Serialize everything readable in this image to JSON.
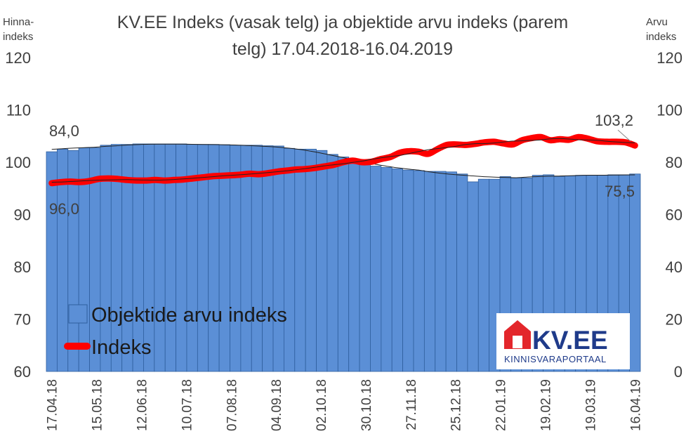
{
  "chart_data": {
    "type": "bar",
    "title": "KV.EE Indeks (vasak telg) ja objektide arvu indeks (parem telg) 17.04.2018-16.04.2019",
    "title_lines": [
      "KV.EE Indeks (vasak telg) ja objektide arvu indeks (parem",
      "telg) 17.04.2018-16.04.2019"
    ],
    "left_axis_title": [
      "Hinna-",
      "indeks"
    ],
    "right_axis_title": [
      "Arvu",
      "indeks"
    ],
    "ylim_left": [
      60,
      120
    ],
    "ylim_right": [
      0,
      120
    ],
    "yticks_left": [
      "120",
      "110",
      "100",
      "90",
      "80",
      "70",
      "60"
    ],
    "yticks_right": [
      "120",
      "100",
      "80",
      "60",
      "40",
      "20",
      "0"
    ],
    "x_tick_labels": [
      "17.04.18",
      "15.05.18",
      "12.06.18",
      "10.07.18",
      "07.08.18",
      "04.09.18",
      "02.10.18",
      "30.10.18",
      "27.11.18",
      "25.12.18",
      "22.01.19",
      "19.02.19",
      "19.03.19",
      "16.04.19"
    ],
    "grid": false,
    "legend_position": "bottom-left",
    "series": [
      {
        "name": "Objektide arvu indeks",
        "kind": "bar",
        "axis": "right",
        "color": "#5b8fd6",
        "values": [
          84.0,
          85.0,
          84.5,
          85.5,
          85.5,
          86.5,
          86.8,
          86.8,
          87.0,
          87.0,
          87.0,
          87.0,
          87.0,
          86.8,
          86.8,
          86.8,
          86.7,
          86.5,
          86.5,
          86.5,
          86.3,
          86.2,
          85.3,
          85.0,
          85.0,
          84.5,
          83.0,
          82.0,
          80.5,
          79.5,
          78.5,
          78.0,
          77.5,
          77.0,
          76.8,
          76.5,
          76.5,
          76.3,
          75.5,
          72.5,
          73.5,
          73.5,
          74.5,
          74.0,
          74.0,
          75.0,
          75.2,
          74.5,
          74.8,
          75.0,
          75.0,
          75.0,
          75.2,
          75.2,
          75.5
        ]
      },
      {
        "name": "Indeks",
        "kind": "line",
        "axis": "left",
        "color": "#ff0000",
        "values": [
          96.0,
          96.2,
          96.3,
          96.2,
          96.4,
          96.8,
          96.9,
          96.8,
          96.6,
          96.5,
          96.5,
          96.6,
          96.5,
          96.6,
          96.7,
          96.9,
          97.1,
          97.3,
          97.4,
          97.5,
          97.6,
          97.8,
          97.7,
          97.9,
          98.2,
          98.4,
          98.6,
          98.7,
          98.9,
          99.2,
          99.5,
          100.0,
          100.3,
          100.0,
          100.1,
          100.6,
          101.0,
          101.8,
          102.1,
          102.0,
          101.6,
          102.5,
          103.3,
          103.4,
          103.3,
          103.5,
          103.8,
          103.9,
          103.6,
          103.4,
          104.2,
          104.6,
          104.8,
          104.2,
          104.4,
          104.3,
          104.8,
          104.5,
          104.0,
          103.9,
          103.9,
          103.8,
          103.2
        ]
      }
    ],
    "annotations": [
      {
        "text": "84,0",
        "series": "Objektide arvu indeks",
        "point": "first"
      },
      {
        "text": "96,0",
        "series": "Indeks",
        "point": "first"
      },
      {
        "text": "103,2",
        "series": "Indeks",
        "point": "last"
      },
      {
        "text": "75,5",
        "series": "Objektide arvu indeks",
        "point": "last"
      }
    ]
  },
  "logo": {
    "brand": "KV.EE",
    "tagline": "KINNISVARAPORTAAL"
  },
  "colors": {
    "text": "#404040",
    "bar": "#5b8fd6",
    "bar_stroke": "#2f5f9e",
    "line": "#ff0000",
    "logo_red": "#e3262b",
    "logo_blue": "#1f3b8a"
  }
}
